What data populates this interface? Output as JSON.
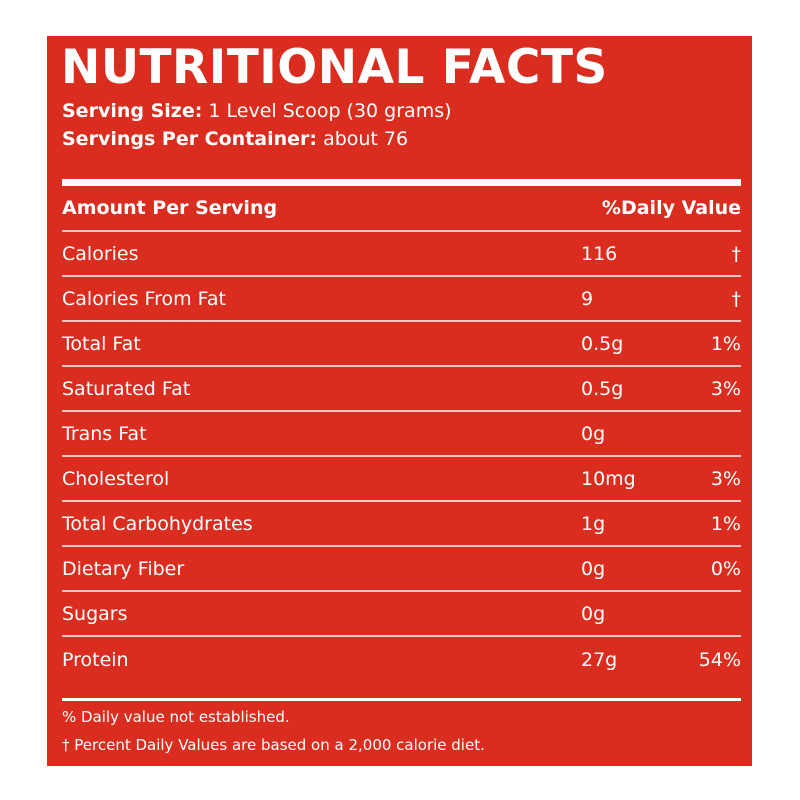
{
  "colors": {
    "panel_background": "#da2d1f",
    "text": "#ffffff",
    "row_divider": "#f4c9c3"
  },
  "title": "NUTRITIONAL FACTS",
  "serving": {
    "size_label": "Serving Size:",
    "size_value": "1 Level Scoop (30 grams)",
    "per_container_label": "Servings Per Container:",
    "per_container_value": "about 76"
  },
  "table": {
    "header": {
      "name": "Amount Per Serving",
      "daily_value": "%Daily Value"
    },
    "rows": [
      {
        "name": "Calories",
        "amount": "116",
        "dv": "†"
      },
      {
        "name": "Calories From Fat",
        "amount": "9",
        "dv": "†"
      },
      {
        "name": "Total Fat",
        "amount": "0.5g",
        "dv": "1%"
      },
      {
        "name": "Saturated Fat",
        "amount": "0.5g",
        "dv": "3%"
      },
      {
        "name": "Trans Fat",
        "amount": "0g",
        "dv": ""
      },
      {
        "name": "Cholesterol",
        "amount": "10mg",
        "dv": "3%"
      },
      {
        "name": "Total Carbohydrates",
        "amount": "1g",
        "dv": "1%"
      },
      {
        "name": "Dietary Fiber",
        "amount": "0g",
        "dv": "0%"
      },
      {
        "name": "Sugars",
        "amount": "0g",
        "dv": ""
      },
      {
        "name": "Protein",
        "amount": "27g",
        "dv": "54%"
      }
    ]
  },
  "footnotes": [
    "% Daily value not established.",
    "†  Percent Daily Values are based on a 2,000 calorie diet."
  ]
}
